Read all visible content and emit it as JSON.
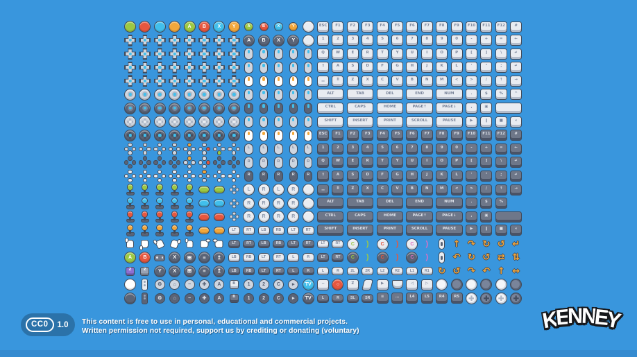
{
  "page": {
    "background": "#3996dd",
    "outline": "#414a59"
  },
  "colors": {
    "green": "#9cc843",
    "red": "#e6573f",
    "cyan": "#41bfec",
    "orange": "#f2a73b",
    "yellow": "#f2b33d",
    "light": "#e9ecf1",
    "mid": "#cfd6e0",
    "dark": "#5a6477",
    "gray": "#99a3b4",
    "white": "#ffffff",
    "purple": "#8d6fd1",
    "magenta": "#df6fc3",
    "key_light": "#e9ecf1",
    "key_dark": "#6e7789",
    "accent_cyan": "#41bfec",
    "accent_orange": "#f2a73b"
  },
  "sprite_rows": [
    "c|green c|red c|cyan c|orange c|green|A c|red|B c|cyan|X c|orange|Y sc|green|A sc|red|B sc|cyan|X sc|orange|Y c|light k|ESC k|F1 k|F2 k|F3 k|F4 k|F5 k|F6 k|F7 k|F8 k|F9 k|F10 k|F11 k|F12 k|#",
    "d|light d|light d|light d|light d|light d|light d|light d|light c|dark|A c|dark|B c|dark|X c|dark|Y c|light k|1 k|2 k|3 k|4 k|5 k|6 k|7 k|8 k|9 k|0 k|- k|+ k|= k|←",
    "d|light d|light d|light d|light d|light d|light d|light d|light m|light|cyan m|light|cyan m|light|cyan m|light|cyan m|light|cyan k|Q k|W k|E k|R k|T k|Y k|U k|I k|O k|P k|[ k|] k|\\ k|↵",
    "d|light d|light d|light d|light d|light d|light d|light d|light m|light|cyan m|light|cyan m|light|cyan m|light|cyan m|light|cyan k|⇧ k|A k|S k|D k|F k|G k|H k|J k|K k|L k|' k|\" k|; k|↵",
    "d|light d|light d|light d|light d|light d|light d|light d|light m|white|orange m|white|orange m|white|orange m|white|orange m|white|orange k|▁ k|⠿ k|Z k|X k|C k|V k|B k|N k|M k|< k|> k|/ k|↑ k|→",
    "an|light an|light an|light an|light an|light an|light an|light an|light m|light|cyan m|light|cyan m|light|cyan m|light|cyan m|light|cyan kw|ALT kw|TAB kw|DEL kw|END kw|NUM k|. k|$ k|% k|^",
    "an|dark an|dark an|dark an|dark an|dark an|dark an|dark an|dark m|dark|cyan m|dark|cyan m|dark|cyan m|dark|cyan m|dark|cyan kw|CTRL kw|CAPS kw|HOME kw|PAGE↑ kw|PAGE↓ k|, k|▣ kw|_",
    "rp|light rp|light rp|light rp|light rp|light rp|light rp|light rp|light m|light|cyan m|light|cyan m|light|cyan m|light|cyan m|light|cyan kw|SHIFT kw|INSERT kw|PRINT kw|SCROLL kw|PAUSE k|▶ k|‖ k|■ k|«",
    "rp|dark rp|dark rp|dark rp|dark rp|dark rp|dark rp|dark rp|dark m|white|orange m|white|orange m|white|orange m|white|orange m|white|orange K|ESC K|F1 K|F2 K|F3 K|F4 K|F5 K|F6 K|F7 K|F8 K|F9 K|F10 K|F11 K|F12 K|#",
    "dm|light dm|light dm|light dm|light dm|o dm|r dm|g dm|light m|light|L m|light|L m|light|L m|light|L m|light|L K|1 K|2 K|3 K|4 K|5 K|6 K|7 K|8 K|9 K|0 K|- K|+ K|= K|←",
    "dm|dark dm|dark dm|dark dm|dark dm|o dm|r dm|dark dm|dark m|light|R m|light|R m|light|R m|light|R m|light|R K|Q K|W K|E K|R K|T K|Y K|U K|I K|O K|P K|[ K|] K|\\ K|↵",
    "dm|y dm|y dm|y dm|y dm|y dm|o dm|y dm|y m|dark|R m|dark|R m|dark|R m|dark|R m|dark|R K|⇧ K|A K|S K|D K|F K|G K|H K|J K|K K|L K|' K|\" K|; K|↵",
    "j|green j|green j|green j|green j|green p|green p|green dm|sm co|L co|R co|L co|R c|light K|▁ K|⠿ K|Z K|X K|C K|V K|B K|N K|M K|< K|> K|/ K|↑ K|→",
    "j|cyan j|cyan j|cyan j|cyan j|cyan p|cyan p|cyan dm|sm co|R co|R co|R co|R c|light Kw|ALT Kw|TAB Kw|DEL Kw|END Kw|NUM K|. K|$ K|%",
    "j|red j|red j|red j|red j|red p|red p|red dm|sm co|R co|R co|R co|R c|light Kw|CTRL Kw|CAPS Kw|HOME Kw|PAGE↑ Kw|PAGE↓ K|, K|▣ Kw|_",
    "j|orange j|orange j|orange j|orange j|orange p|orange p|orange pl|LT pl|RT pl|LB pl|RB pl|LT pl|RT Kw|SHIFT Kw|INSERT Kw|PRINT Kw|SCROLL Kw|PAUSE K|▶ K|‖ K|■ K|«",
    "h|1 h|2 h|3 h|4 h|5 h|6 h|7 pd|LT pd|RT pd|LB pd|RB pd|LT pd|RT pl|LT pl|RT cc|green br|green cc|red br|red cc|magenta br|magenta mic a|↑ a|↷ a|↻ a|↺ a|↵",
    "c|green|A c|red|B gp|dark c|dark|X cp|⊞ cp|≡ cp|↥ pl|LB pl|RB pl|LT pl|RT pl|L pl|R pd|LT pd|RT cd|green br|green cd|red br|red cd|magenta br|magenta mic a|↶ a|↻ a|↺ a|⇄ a|⇅",
    "pb|purple|Z pb|gray|Z c|dark|Y c|dark|X cp|⊞ cp|≡ cp|↥ pd|LB pd|RB pd|LT pd|RT pd|L pd|R pl|L pl|R pl|2L pl|2R pl|L2 pl|R2 pl|L1 pl|R1 a|↻ a|↺ a|↷ a|↶ a|↑ a|↔",
    "c|white w|light cg|⚙ cg|⌂ cg|− cg|✚ cg|A sq|B cg|1 cg|2 cg|C cg|▸ c|cyan|TV k|− c|red|○ k|Z sl|light k|▶ tp|light k|◁ k|▷ t|1 t|2 t|3 t|4 t|5 t|6",
    "c|dark w|dark cgd|⚙ cgd|⌂ cgd|− cgd|✚ cgd|A sqd|B cgd|1 cgd|2 cgd|C cgd|▸ c|dark|TV pd|L pd|R pd|SL pd|SR K|≡ K|… K|L4 K|L5 K|R4 K|R5 tc|1 tc|2 tc|3 tc|4"
  ],
  "footer": {
    "badge": {
      "cc": "CC0",
      "version": "1.0"
    },
    "line1": "This content is free to use in personal, educational and commercial projects.",
    "line2": "Written permission not required, support us by crediting or donating (voluntary)"
  },
  "brand": {
    "logo_text": "KENNEY",
    "letters": [
      "K",
      "E",
      "N",
      "N",
      "E",
      "Y"
    ]
  }
}
